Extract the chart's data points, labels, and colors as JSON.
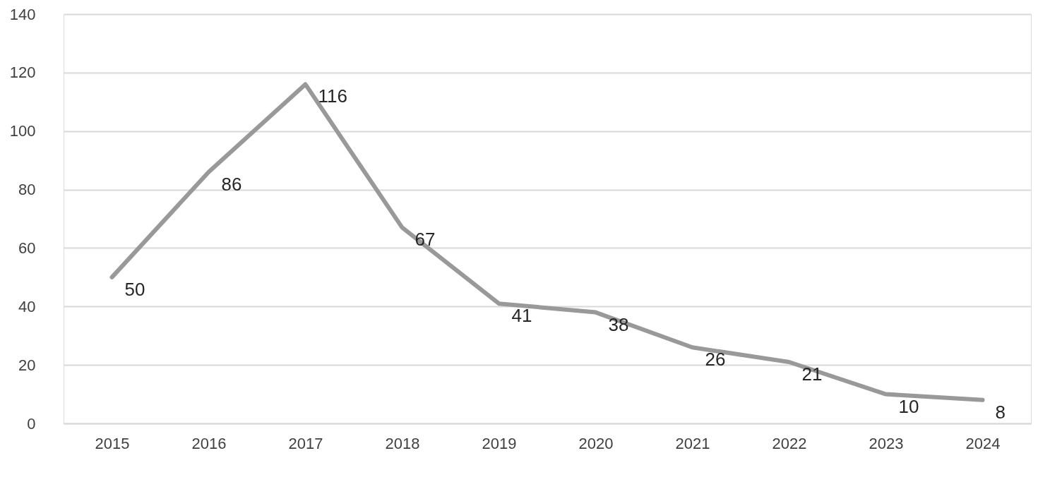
{
  "chart_data": {
    "type": "line",
    "categories": [
      "2015",
      "2016",
      "2017",
      "2018",
      "2019",
      "2020",
      "2021",
      "2022",
      "2023",
      "2024"
    ],
    "series": [
      {
        "color": "#999999",
        "values": [
          50,
          86,
          116,
          67,
          41,
          38,
          26,
          21,
          10,
          8
        ]
      }
    ],
    "ylim": [
      0,
      140
    ],
    "yticks": [
      0,
      20,
      40,
      60,
      80,
      100,
      120,
      140
    ],
    "grid": "y",
    "data_labels": true,
    "marker": "none",
    "line_style": "solid"
  }
}
